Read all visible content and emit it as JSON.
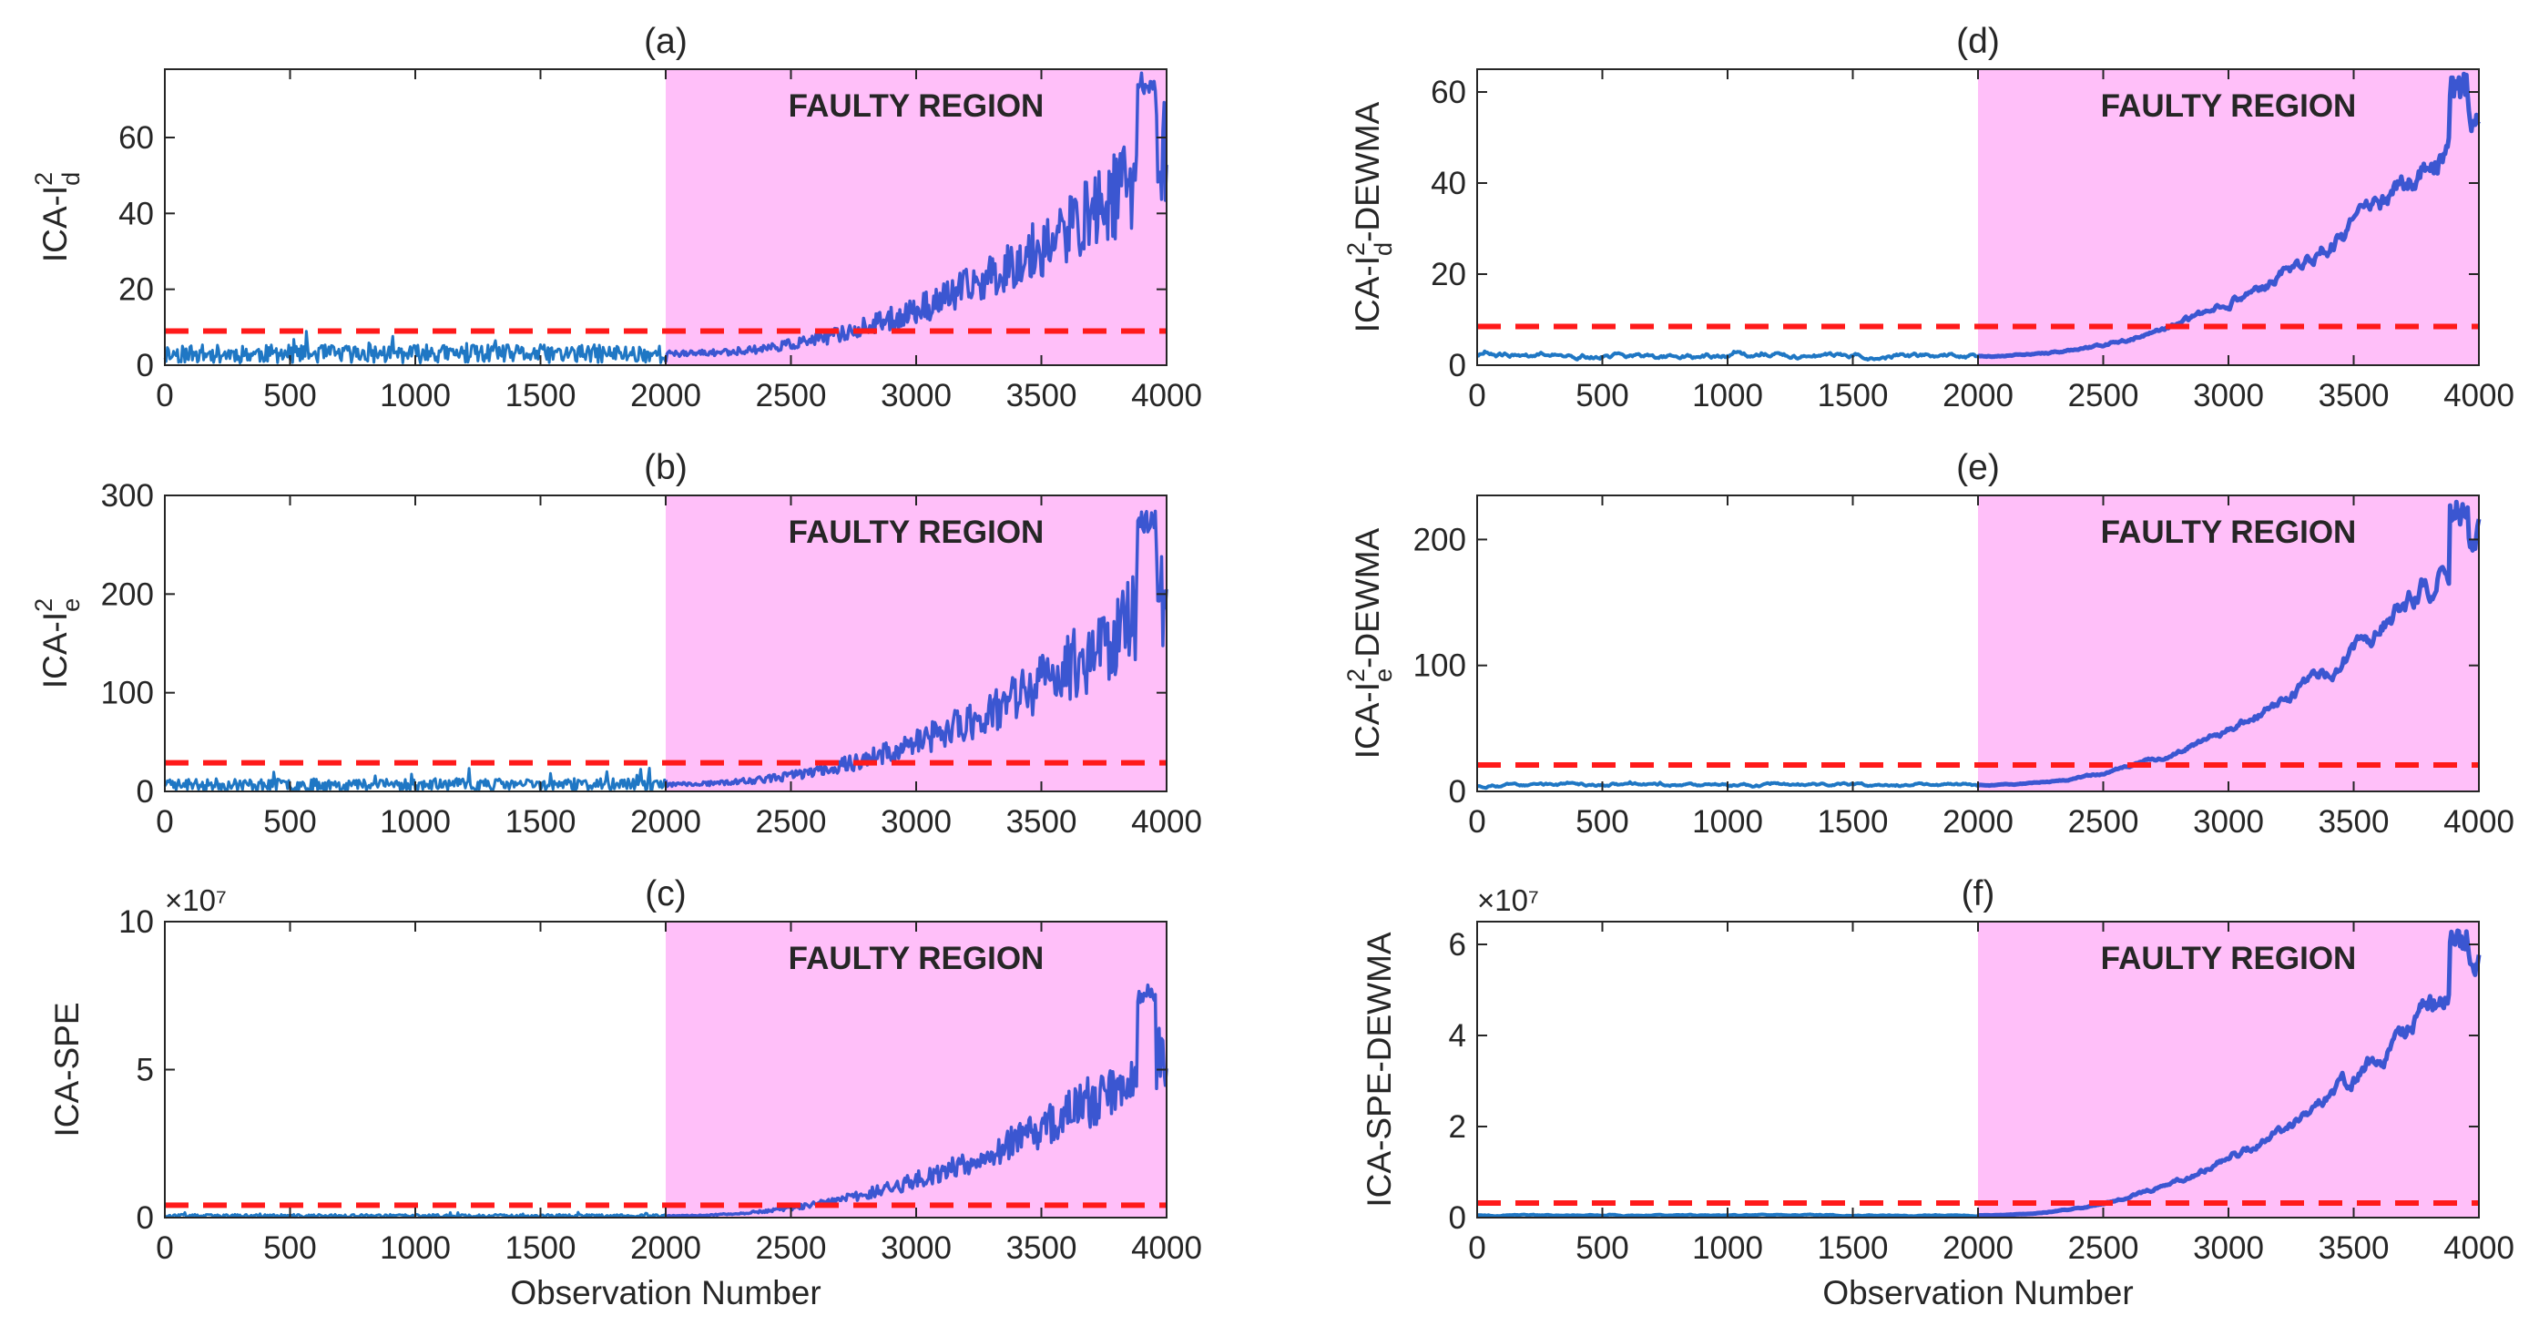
{
  "figure": {
    "xlabel": "Observation Number",
    "colors": {
      "normal_series": "#1f77c4",
      "faulty_series": "#3b56d1",
      "threshold": "#ff1a1a",
      "faulty_region": "#ffbff9"
    }
  },
  "chart_data": [
    {
      "type": "line",
      "id": "a",
      "title": "(a)",
      "ylabel_main": "ICA-I",
      "ylabel_sup": "2",
      "ylabel_sub": "d",
      "ylabel_suffix": "",
      "xlim": [
        0,
        4000
      ],
      "ylim": [
        0,
        78
      ],
      "xticks": [
        0,
        500,
        1000,
        1500,
        2000,
        2500,
        3000,
        3500,
        4000
      ],
      "xtick_labels": [
        "0",
        "500",
        "1000",
        "1500",
        "2000",
        "2500",
        "3000",
        "3500",
        "4000"
      ],
      "yticks": [
        0,
        20,
        40,
        60
      ],
      "ytick_labels": [
        "0",
        "20",
        "40",
        "60"
      ],
      "exponent": "",
      "threshold": 9,
      "fault_start": 2000,
      "fault_label": "FAULTY REGION",
      "normal_level": 3.0,
      "normal_noise": 2.4,
      "fault_end_level": 56,
      "fault_noise_frac": 0.16,
      "peak": 77,
      "smooth": false,
      "seed": 11
    },
    {
      "type": "line",
      "id": "b",
      "title": "(b)",
      "ylabel_main": "ICA-I",
      "ylabel_sup": "2",
      "ylabel_sub": "e",
      "ylabel_suffix": "",
      "xlim": [
        0,
        4000
      ],
      "ylim": [
        0,
        300
      ],
      "xticks": [
        0,
        500,
        1000,
        1500,
        2000,
        2500,
        3000,
        3500,
        4000
      ],
      "xtick_labels": [
        "0",
        "500",
        "1000",
        "1500",
        "2000",
        "2500",
        "3000",
        "3500",
        "4000"
      ],
      "yticks": [
        0,
        100,
        200,
        300
      ],
      "ytick_labels": [
        "0",
        "100",
        "200",
        "300"
      ],
      "exponent": "",
      "threshold": 29,
      "fault_start": 2000,
      "fault_label": "FAULTY REGION",
      "normal_level": 7,
      "normal_noise": 6,
      "fault_end_level": 200,
      "fault_noise_frac": 0.18,
      "peak": 285,
      "smooth": false,
      "seed": 23
    },
    {
      "type": "line",
      "id": "c",
      "title": "(c)",
      "ylabel_main": "ICA-SPE",
      "ylabel_sup": "",
      "ylabel_sub": "",
      "ylabel_suffix": "",
      "xlim": [
        0,
        4000
      ],
      "ylim": [
        0,
        10
      ],
      "xticks": [
        0,
        500,
        1000,
        1500,
        2000,
        2500,
        3000,
        3500,
        4000
      ],
      "xtick_labels": [
        "0",
        "500",
        "1000",
        "1500",
        "2000",
        "2500",
        "3000",
        "3500",
        "4000"
      ],
      "yticks": [
        0,
        5,
        10
      ],
      "ytick_labels": [
        "0",
        "5",
        "10"
      ],
      "exponent": "×10⁷",
      "threshold": 0.42,
      "fault_start": 2000,
      "fault_label": "FAULTY REGION",
      "normal_level": 0.06,
      "normal_noise": 0.05,
      "fault_end_level": 5.6,
      "fault_noise_frac": 0.14,
      "peak": 7.9,
      "smooth": false,
      "seed": 37
    },
    {
      "type": "line",
      "id": "d",
      "title": "(d)",
      "ylabel_main": "ICA-I",
      "ylabel_sup": "2",
      "ylabel_sub": "d",
      "ylabel_suffix": "-DEWMA",
      "xlim": [
        0,
        4000
      ],
      "ylim": [
        0,
        65
      ],
      "xticks": [
        0,
        500,
        1000,
        1500,
        2000,
        2500,
        3000,
        3500,
        4000
      ],
      "xtick_labels": [
        "0",
        "500",
        "1000",
        "1500",
        "2000",
        "2500",
        "3000",
        "3500",
        "4000"
      ],
      "yticks": [
        0,
        20,
        40,
        60
      ],
      "ytick_labels": [
        "0",
        "20",
        "40",
        "60"
      ],
      "exponent": "",
      "threshold": 8.5,
      "fault_start": 2000,
      "fault_label": "FAULTY REGION",
      "normal_level": 2.0,
      "normal_noise": 1.4,
      "fault_end_level": 55,
      "fault_noise_frac": 0.1,
      "peak": 64,
      "smooth": true,
      "seed": 41
    },
    {
      "type": "line",
      "id": "e",
      "title": "(e)",
      "ylabel_main": "ICA-I",
      "ylabel_sup": "2",
      "ylabel_sub": "e",
      "ylabel_suffix": "-DEWMA",
      "xlim": [
        0,
        4000
      ],
      "ylim": [
        0,
        235
      ],
      "xticks": [
        0,
        500,
        1000,
        1500,
        2000,
        2500,
        3000,
        3500,
        4000
      ],
      "xtick_labels": [
        "0",
        "500",
        "1000",
        "1500",
        "2000",
        "2500",
        "3000",
        "3500",
        "4000"
      ],
      "yticks": [
        0,
        100,
        200
      ],
      "ytick_labels": [
        "0",
        "100",
        "200"
      ],
      "exponent": "",
      "threshold": 21,
      "fault_start": 2000,
      "fault_label": "FAULTY REGION",
      "normal_level": 5,
      "normal_noise": 3,
      "fault_end_level": 205,
      "fault_noise_frac": 0.09,
      "peak": 230,
      "smooth": true,
      "seed": 53
    },
    {
      "type": "line",
      "id": "f",
      "title": "(f)",
      "ylabel_main": "ICA-SPE-DEWMA",
      "ylabel_sup": "",
      "ylabel_sub": "",
      "ylabel_suffix": "",
      "xlim": [
        0,
        4000
      ],
      "ylim": [
        0,
        6.5
      ],
      "xticks": [
        0,
        500,
        1000,
        1500,
        2000,
        2500,
        3000,
        3500,
        4000
      ],
      "xtick_labels": [
        "0",
        "500",
        "1000",
        "1500",
        "2000",
        "2500",
        "3000",
        "3500",
        "4000"
      ],
      "yticks": [
        0,
        2,
        4,
        6
      ],
      "ytick_labels": [
        "0",
        "2",
        "4",
        "6"
      ],
      "exponent": "×10⁷",
      "threshold": 0.32,
      "fault_start": 2000,
      "fault_label": "FAULTY REGION",
      "normal_level": 0.05,
      "normal_noise": 0.03,
      "fault_end_level": 5.7,
      "fault_noise_frac": 0.09,
      "peak": 6.4,
      "smooth": true,
      "seed": 67
    }
  ]
}
